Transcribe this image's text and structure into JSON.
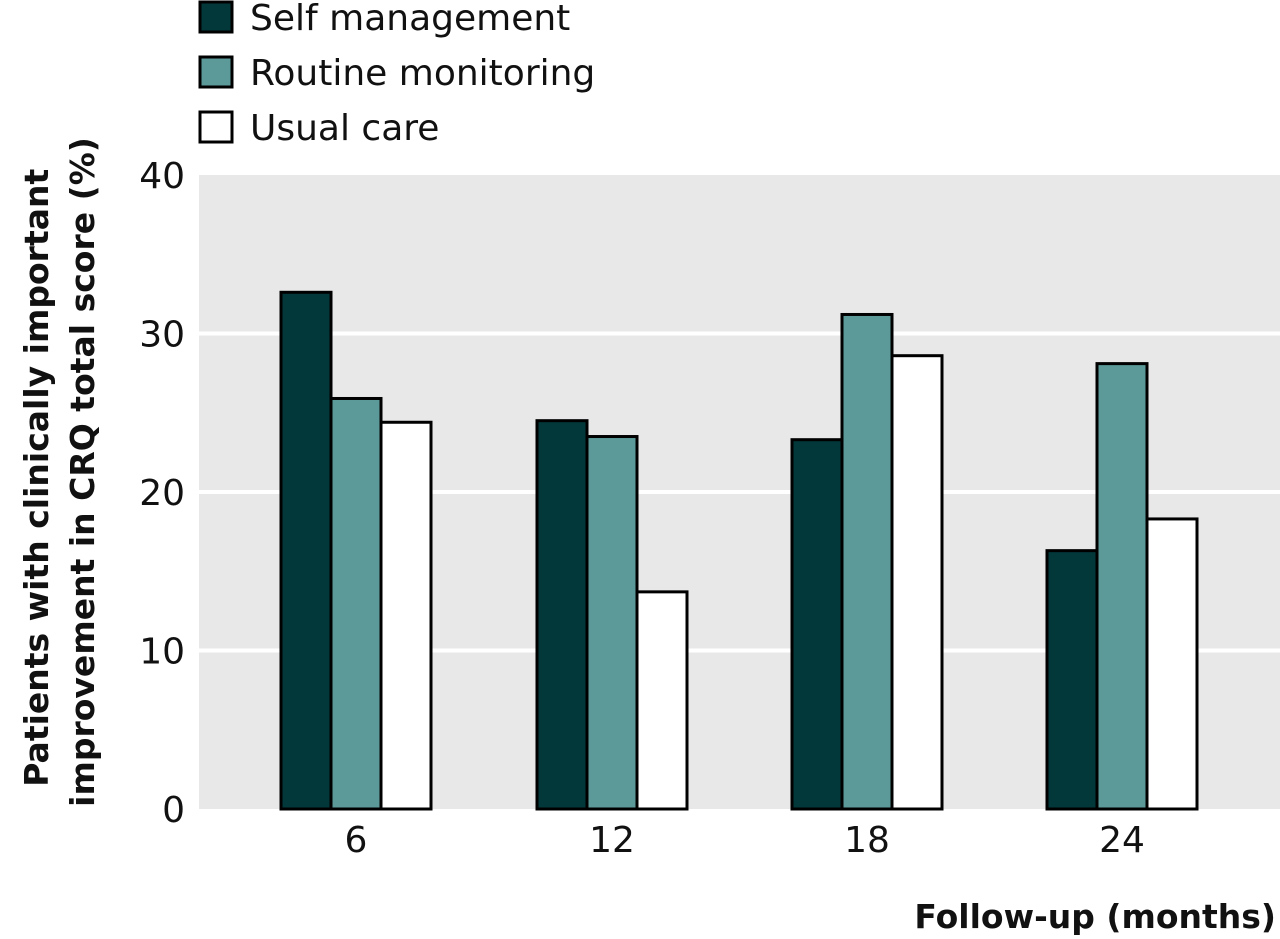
{
  "chart_data": {
    "type": "bar",
    "title": "",
    "xlabel": "Follow-up (months)",
    "ylabel_lines": [
      "Patients with clinically important",
      "improvement in CRQ total score (%)"
    ],
    "categories": [
      "6",
      "12",
      "18",
      "24"
    ],
    "ylim": [
      0,
      40
    ],
    "yticks": [
      "0",
      "10",
      "20",
      "30",
      "40"
    ],
    "grid": true,
    "legend_position": "top-left",
    "series": [
      {
        "name": "Self management",
        "color": "#03383a",
        "values": [
          32.6,
          24.5,
          23.3,
          16.3
        ]
      },
      {
        "name": "Routine monitoring",
        "color": "#5b9a98",
        "values": [
          25.9,
          23.5,
          31.2,
          28.1
        ]
      },
      {
        "name": "Usual care",
        "color": "#ffffff",
        "values": [
          24.4,
          13.7,
          28.6,
          18.3
        ]
      }
    ],
    "plot_background": "#e8e8e8",
    "grid_color": "#ffffff",
    "bar_outline": "#000000"
  }
}
